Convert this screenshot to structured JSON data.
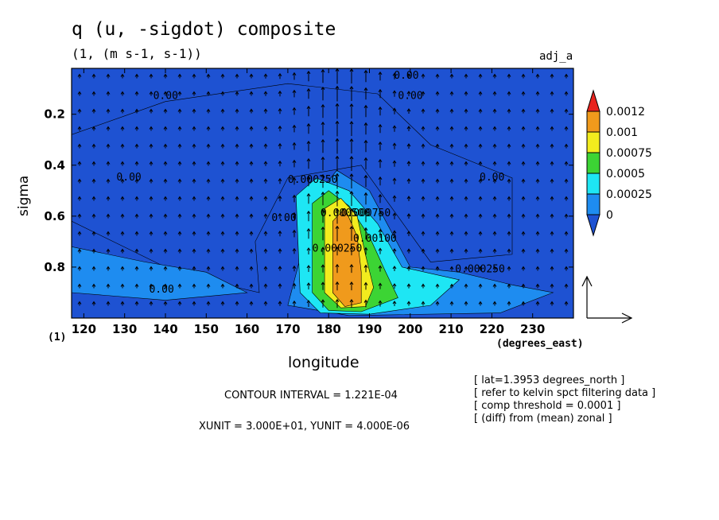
{
  "chart_data": {
    "type": "contour",
    "title": "q (u, -sigdot) composite",
    "units_line": "(1, (m s-1, s-1))",
    "tag": "adj_a",
    "xlabel": "longitude",
    "x_units": "(degrees_east)",
    "ylabel": "sigma",
    "y_units": "(1)",
    "xlim": [
      117,
      240
    ],
    "ylim": [
      1.0,
      0.02
    ],
    "x_ticks": [
      "120",
      "130",
      "140",
      "150",
      "160",
      "170",
      "180",
      "190",
      "200",
      "210",
      "220",
      "230"
    ],
    "y_ticks": [
      "0.2",
      "0.4",
      "0.6",
      "0.8"
    ],
    "colorbar": {
      "levels": [
        "0.0012",
        "0.001",
        "0.00075",
        "0.0005",
        "0.00025",
        "0"
      ],
      "colors": [
        "#e8231e",
        "#f09a1c",
        "#f2ec1e",
        "#3cd434",
        "#1ee6f4",
        "#1e8cf0",
        "#1e52d2"
      ]
    },
    "contour_labels": [
      "0.00",
      "0.00",
      "0.00",
      "0.00",
      "0.00",
      "0.00",
      "0.00",
      "0.000250",
      "0.000250",
      "0.000500",
      "0.000750",
      "0.00100",
      "0.000250"
    ],
    "field": [
      {
        "level": 0,
        "points": [
          [
            140,
            0.8
          ],
          [
            152,
            0.86
          ],
          [
            163,
            0.9
          ],
          [
            162,
            0.7
          ],
          [
            170,
            0.45
          ],
          [
            188,
            0.4
          ],
          [
            205,
            0.78
          ],
          [
            225,
            0.75
          ],
          [
            225,
            0.45
          ],
          [
            205,
            0.32
          ],
          [
            192,
            0.12
          ],
          [
            170,
            0.08
          ],
          [
            140,
            0.15
          ],
          [
            117,
            0.28
          ],
          [
            117,
            0.62
          ]
        ]
      },
      {
        "level": 1,
        "points": [
          [
            170,
            0.95
          ],
          [
            177,
            0.52
          ],
          [
            182,
            0.42
          ],
          [
            190,
            0.5
          ],
          [
            200,
            0.8
          ],
          [
            212,
            0.82
          ],
          [
            225,
            0.87
          ],
          [
            235,
            0.9
          ],
          [
            222,
            0.98
          ],
          [
            185,
            0.99
          ]
        ]
      },
      {
        "level": 1,
        "points": [
          [
            117,
            0.72
          ],
          [
            135,
            0.78
          ],
          [
            150,
            0.82
          ],
          [
            160,
            0.9
          ],
          [
            140,
            0.93
          ],
          [
            117,
            0.9
          ]
        ]
      },
      {
        "level": 2,
        "points": [
          [
            173,
            0.9
          ],
          [
            172,
            0.52
          ],
          [
            177,
            0.45
          ],
          [
            185,
            0.5
          ],
          [
            192,
            0.63
          ],
          [
            198,
            0.8
          ],
          [
            212,
            0.85
          ],
          [
            205,
            0.95
          ],
          [
            190,
            0.985
          ],
          [
            178,
            0.98
          ]
        ]
      },
      {
        "level": 3,
        "points": [
          [
            176,
            0.9
          ],
          [
            176,
            0.55
          ],
          [
            180,
            0.5
          ],
          [
            185,
            0.56
          ],
          [
            190,
            0.68
          ],
          [
            194,
            0.82
          ],
          [
            197,
            0.92
          ],
          [
            188,
            0.975
          ],
          [
            180,
            0.97
          ]
        ]
      },
      {
        "level": 4,
        "points": [
          [
            179,
            0.9
          ],
          [
            179,
            0.57
          ],
          [
            183,
            0.53
          ],
          [
            187,
            0.6
          ],
          [
            189,
            0.75
          ],
          [
            191,
            0.88
          ],
          [
            189,
            0.955
          ],
          [
            183,
            0.96
          ]
        ]
      },
      {
        "level": 5,
        "points": [
          [
            181,
            0.9
          ],
          [
            181,
            0.62
          ],
          [
            184,
            0.57
          ],
          [
            187,
            0.68
          ],
          [
            188,
            0.82
          ],
          [
            188,
            0.94
          ],
          [
            184,
            0.955
          ]
        ]
      }
    ],
    "contour_interval": "CONTOUR INTERVAL = 1.221E-04",
    "vector_units": "XUNIT = 3.000E+01, YUNIT = 4.000E-06",
    "notes": [
      "[ lat=1.3953 degrees_north ]",
      "[ refer to kelvin spct filtering data ]",
      "[ comp threshold = 0.0001 ]",
      "[ (diff) from (mean) zonal ]"
    ]
  }
}
